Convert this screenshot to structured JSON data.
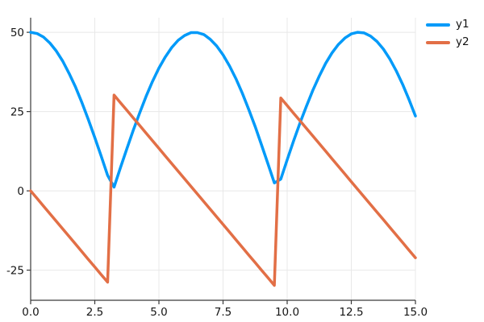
{
  "figure": {
    "background": "#ffffff"
  },
  "axes": {
    "spine_color": "#3a3a3a",
    "grid_color": "#e8e8e8",
    "tick_label_color": "#151515"
  },
  "chart_data": {
    "type": "line",
    "title": "",
    "xlabel": "",
    "ylabel": "",
    "grid": true,
    "legend_position": "outer-top-right",
    "xlim": [
      0,
      15
    ],
    "ylim": [
      -34.5,
      54.6
    ],
    "xticks": {
      "values": [
        0,
        2.5,
        5,
        7.5,
        10,
        12.5,
        15
      ],
      "labels": [
        "0.0",
        "2.5",
        "5.0",
        "7.5",
        "10.0",
        "12.5",
        "15.0"
      ]
    },
    "yticks": {
      "values": [
        50,
        25,
        0,
        -25
      ],
      "labels": [
        "50",
        "25",
        "0",
        "-25"
      ]
    },
    "legend": {
      "entries": [
        {
          "label": "y1",
          "color": "#009af9"
        },
        {
          "label": "y2",
          "color": "#e26f46"
        }
      ]
    },
    "x": [
      0,
      0.25,
      0.5,
      0.75,
      1,
      1.25,
      1.5,
      1.75,
      2,
      2.25,
      2.5,
      2.75,
      3,
      3.25,
      3.5,
      3.75,
      4,
      4.25,
      4.5,
      4.75,
      5,
      5.25,
      5.5,
      5.75,
      6,
      6.25,
      6.5,
      6.75,
      7,
      7.25,
      7.5,
      7.75,
      8,
      8.25,
      8.5,
      8.75,
      9,
      9.25,
      9.5,
      9.75,
      10,
      10.25,
      10.5,
      10.75,
      11,
      11.25,
      11.5,
      11.75,
      12,
      12.25,
      12.5,
      12.75,
      13,
      13.25,
      13.5,
      13.75,
      14,
      14.25,
      14.5,
      14.75,
      15
    ],
    "series": [
      {
        "name": "y1",
        "color": "#009af9",
        "line_width": 3.5,
        "y": [
          50,
          49.6,
          48.5,
          46.6,
          44.1,
          40.9,
          37,
          32.7,
          27.8,
          22.5,
          16.8,
          11,
          4.9,
          1.2,
          7.3,
          13.3,
          19.1,
          24.6,
          29.8,
          34.5,
          38.7,
          42.2,
          45.2,
          47.5,
          49,
          49.9,
          49.9,
          49.3,
          47.8,
          45.7,
          42.9,
          39.4,
          35.4,
          30.8,
          25.7,
          20.3,
          14.5,
          8.5,
          2.5,
          3.7,
          9.8,
          15.7,
          21.4,
          26.7,
          31.7,
          36.2,
          40.2,
          43.5,
          46.2,
          48.2,
          49.5,
          50,
          49.8,
          48.8,
          47.1,
          44.7,
          41.6,
          37.9,
          33.6,
          28.8,
          23.6
        ]
      },
      {
        "name": "y2",
        "color": "#e26f46",
        "line_width": 3.5,
        "y": [
          0,
          -2.4,
          -4.8,
          -7.2,
          -9.6,
          -12,
          -14.4,
          -16.8,
          -19.2,
          -21.6,
          -24,
          -26.4,
          -28.8,
          30.2,
          27.8,
          25.4,
          23,
          20.6,
          18.2,
          15.8,
          13.4,
          11,
          8.6,
          6.2,
          3.8,
          1.4,
          -1,
          -3.4,
          -5.8,
          -8.2,
          -10.6,
          -13,
          -15.4,
          -17.8,
          -20.2,
          -22.6,
          -25,
          -27.4,
          -29.8,
          29.3,
          26.9,
          24.5,
          22.1,
          19.7,
          17.3,
          14.9,
          12.5,
          10.1,
          7.7,
          5.3,
          2.9,
          0.5,
          -1.9,
          -4.3,
          -6.7,
          -9.1,
          -11.5,
          -13.9,
          -16.3,
          -18.7,
          -21.1
        ]
      }
    ]
  }
}
